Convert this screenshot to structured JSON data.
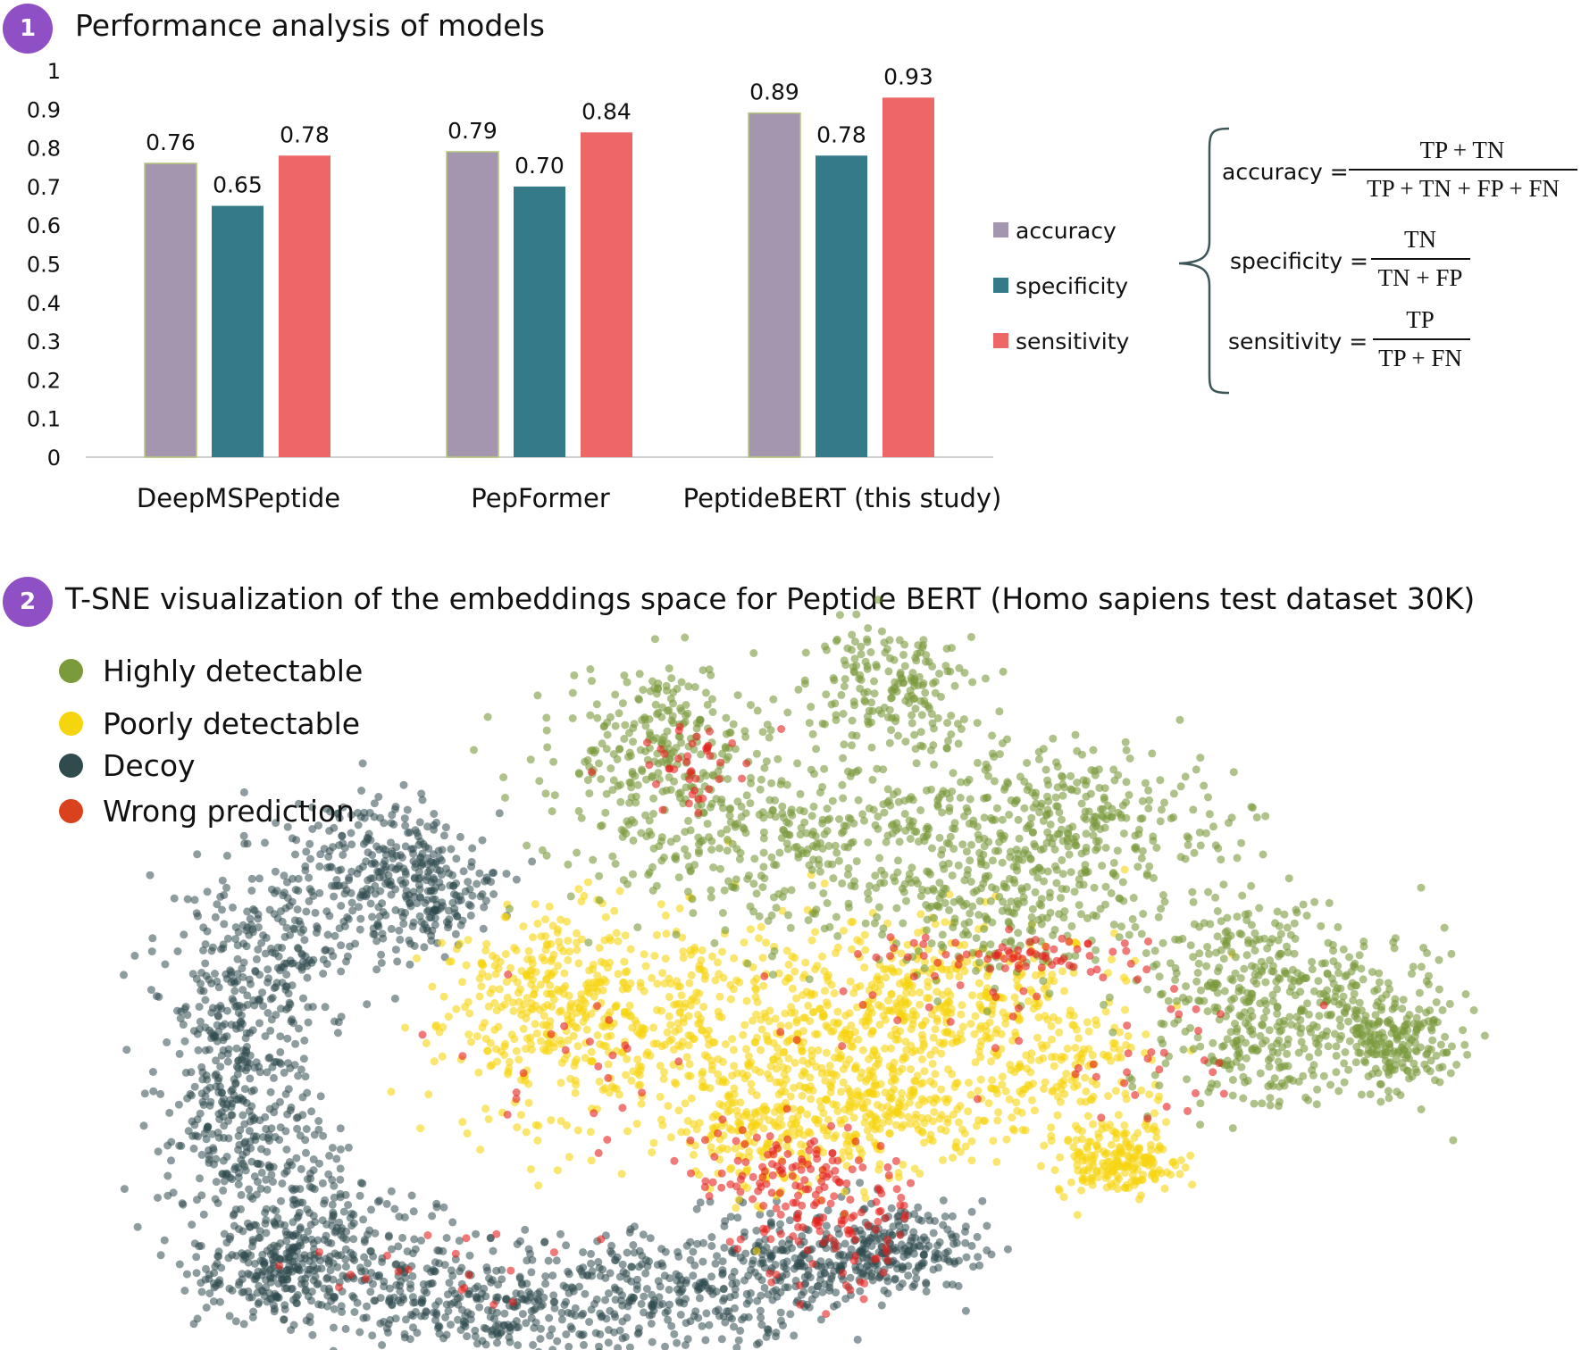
{
  "section1": {
    "number": "1",
    "title": "Performance analysis of models"
  },
  "section2": {
    "number": "2",
    "title": "T-SNE visualization of the embeddings space for Peptide BERT (Homo sapiens test dataset 30K)"
  },
  "colors": {
    "badge": "#8e50c4",
    "accuracy": "#a596b0",
    "specificity": "#357a88",
    "sensitivity": "#ec6766",
    "highly": "#7a9a3c",
    "poorly": "#f6d40e",
    "decoy": "#2f4b4e",
    "wrong": "#d9421c"
  },
  "chart_data": {
    "type": "bar",
    "categories": [
      "DeepMSPeptide",
      "PepFormer",
      "PeptideBERT (this study)"
    ],
    "series": [
      {
        "name": "accuracy",
        "values": [
          0.76,
          0.79,
          0.89
        ],
        "labels": [
          "0.76",
          "0.79",
          "0.89"
        ]
      },
      {
        "name": "specificity",
        "values": [
          0.65,
          0.7,
          0.78
        ],
        "labels": [
          "0.65",
          "0.70",
          "0.78"
        ]
      },
      {
        "name": "sensitivity",
        "values": [
          0.78,
          0.84,
          0.93
        ],
        "labels": [
          "0.78",
          "0.84",
          "0.93"
        ]
      }
    ],
    "yticks": [
      "0",
      "0.1",
      "0.2",
      "0.3",
      "0.4",
      "0.5",
      "0.6",
      "0.7",
      "0.8",
      "0.9",
      "1"
    ],
    "ylim": [
      0,
      1
    ],
    "legend_position": "right"
  },
  "formulas": {
    "accuracy": {
      "label": "accuracy =",
      "numerator": "TP + TN",
      "denominator": "TP + TN + FP + FN"
    },
    "specificity": {
      "label": "specificity =",
      "numerator": "TN",
      "denominator": "TN + FP"
    },
    "sensitivity": {
      "label": "sensitivity =",
      "numerator": "TP",
      "denominator": "TP + FN"
    }
  },
  "tsne_legend": [
    "Highly detectable",
    "Poorly detectable",
    "Decoy",
    "Wrong prediction"
  ]
}
